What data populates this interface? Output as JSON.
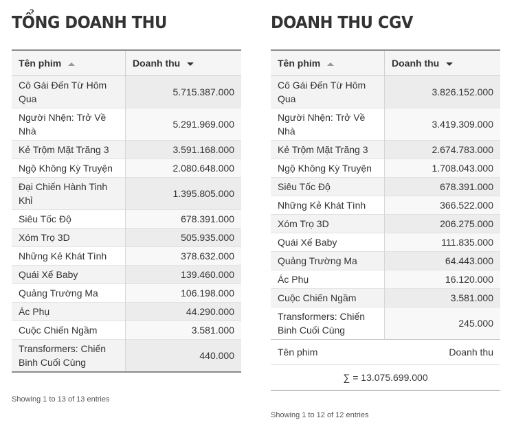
{
  "left": {
    "title": "TỔNG DOANH THU",
    "col_name": "Tên phim",
    "col_value": "Doanh thu",
    "rows": [
      {
        "name": "Cô Gái Đến Từ Hôm Qua",
        "value": "5.715.387.000"
      },
      {
        "name": "Người Nhện: Trở Về Nhà",
        "value": "5.291.969.000"
      },
      {
        "name": "Kẻ Trộm Mặt Trăng 3",
        "value": "3.591.168.000"
      },
      {
        "name": "Ngộ Không Kỳ Truyện",
        "value": "2.080.648.000"
      },
      {
        "name": "Đại Chiến Hành Tinh Khỉ",
        "value": "1.395.805.000"
      },
      {
        "name": "Siêu Tốc Độ",
        "value": "678.391.000"
      },
      {
        "name": "Xóm Trọ 3D",
        "value": "505.935.000"
      },
      {
        "name": "Những Kẻ Khát Tình",
        "value": "378.632.000"
      },
      {
        "name": "Quái Xế Baby",
        "value": "139.460.000"
      },
      {
        "name": "Quảng Trường Ma",
        "value": "106.198.000"
      },
      {
        "name": "Ác Phụ",
        "value": "44.290.000"
      },
      {
        "name": "Cuộc Chiến Ngầm",
        "value": "3.581.000"
      },
      {
        "name": "Transformers: Chiến Binh Cuối Cùng",
        "value": "440.000"
      }
    ],
    "info": "Showing 1 to 13 of 13 entries"
  },
  "right": {
    "title": "DOANH THU CGV",
    "col_name": "Tên phim",
    "col_value": "Doanh thu",
    "rows": [
      {
        "name": "Cô Gái Đến Từ Hôm Qua",
        "value": "3.826.152.000"
      },
      {
        "name": "Người Nhện: Trở Về Nhà",
        "value": "3.419.309.000"
      },
      {
        "name": "Kẻ Trộm Mặt Trăng 3",
        "value": "2.674.783.000"
      },
      {
        "name": "Ngộ Không Kỳ Truyện",
        "value": "1.708.043.000"
      },
      {
        "name": "Siêu Tốc Độ",
        "value": "678.391.000"
      },
      {
        "name": "Những Kẻ Khát Tình",
        "value": "366.522.000"
      },
      {
        "name": "Xóm Trọ 3D",
        "value": "206.275.000"
      },
      {
        "name": "Quái Xế Baby",
        "value": "111.835.000"
      },
      {
        "name": "Quảng Trường Ma",
        "value": "64.443.000"
      },
      {
        "name": "Ác Phụ",
        "value": "16.120.000"
      },
      {
        "name": "Cuộc Chiến Ngầm",
        "value": "3.581.000"
      },
      {
        "name": "Transformers: Chiến Binh Cuối Cùng",
        "value": "245.000"
      }
    ],
    "footer_name": "Tên phim",
    "footer_value": "Doanh thu",
    "total": "∑ = 13.075.699.000",
    "info": "Showing 1 to 12 of 12 entries"
  }
}
